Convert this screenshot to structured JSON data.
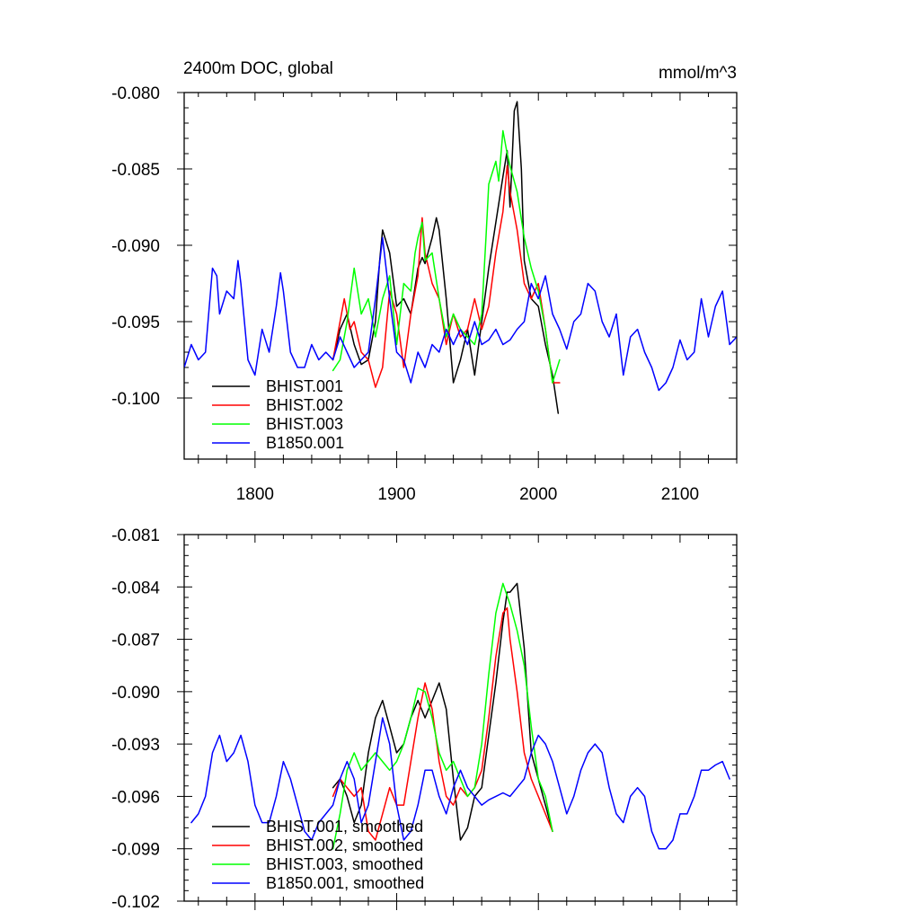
{
  "chart_data": [
    {
      "type": "line",
      "title": "2400m DOC, global",
      "units": "mmol/m^3",
      "xlim": [
        1750,
        2140
      ],
      "ylim": [
        -0.104,
        -0.08
      ],
      "x_ticks": [
        1800,
        1900,
        2000,
        2100
      ],
      "x_tick_labels": [
        "1800",
        "1900",
        "2000",
        "2100"
      ],
      "y_ticks": [
        -0.1,
        -0.095,
        -0.09,
        -0.085,
        -0.08
      ],
      "y_tick_labels": [
        "-0.100",
        "-0.095",
        "-0.090",
        "-0.085",
        "-0.080"
      ],
      "legend_position": "bottom-left",
      "series": [
        {
          "name": "BHIST.001",
          "color": "#000000",
          "x": [
            1855,
            1860,
            1865,
            1870,
            1875,
            1880,
            1885,
            1888,
            1890,
            1895,
            1900,
            1905,
            1910,
            1915,
            1918,
            1920,
            1925,
            1928,
            1930,
            1935,
            1940,
            1945,
            1950,
            1955,
            1960,
            1965,
            1970,
            1975,
            1978,
            1980,
            1983,
            1985,
            1988,
            1990,
            1995,
            2000,
            2005,
            2010,
            2014
          ],
          "y": [
            -0.0975,
            -0.0955,
            -0.0945,
            -0.0965,
            -0.0978,
            -0.0975,
            -0.095,
            -0.091,
            -0.089,
            -0.0905,
            -0.094,
            -0.0935,
            -0.0945,
            -0.0915,
            -0.0908,
            -0.0912,
            -0.0895,
            -0.0882,
            -0.089,
            -0.0935,
            -0.099,
            -0.0975,
            -0.0955,
            -0.0985,
            -0.095,
            -0.0915,
            -0.0885,
            -0.0855,
            -0.0838,
            -0.0875,
            -0.0812,
            -0.0806,
            -0.085,
            -0.091,
            -0.0935,
            -0.094,
            -0.0965,
            -0.0985,
            -0.101
          ]
        },
        {
          "name": "BHIST.002",
          "color": "#ff0000",
          "x": [
            1855,
            1860,
            1863,
            1867,
            1870,
            1875,
            1880,
            1885,
            1890,
            1895,
            1900,
            1905,
            1910,
            1915,
            1918,
            1920,
            1925,
            1930,
            1935,
            1940,
            1945,
            1950,
            1955,
            1960,
            1965,
            1970,
            1975,
            1978,
            1980,
            1985,
            1990,
            1995,
            2000,
            2005,
            2010,
            2015
          ],
          "y": [
            -0.0975,
            -0.095,
            -0.0935,
            -0.0955,
            -0.095,
            -0.097,
            -0.0975,
            -0.0993,
            -0.098,
            -0.093,
            -0.0945,
            -0.098,
            -0.0945,
            -0.092,
            -0.0882,
            -0.0905,
            -0.0925,
            -0.0935,
            -0.0965,
            -0.0945,
            -0.096,
            -0.0955,
            -0.0935,
            -0.0955,
            -0.094,
            -0.0905,
            -0.0878,
            -0.0848,
            -0.0865,
            -0.089,
            -0.0925,
            -0.0935,
            -0.0925,
            -0.0955,
            -0.099,
            -0.099
          ]
        },
        {
          "name": "BHIST.003",
          "color": "#00ff00",
          "x": [
            1855,
            1860,
            1865,
            1870,
            1875,
            1880,
            1885,
            1890,
            1895,
            1900,
            1905,
            1910,
            1913,
            1915,
            1918,
            1920,
            1925,
            1930,
            1935,
            1940,
            1945,
            1950,
            1955,
            1960,
            1963,
            1965,
            1970,
            1972,
            1975,
            1978,
            1980,
            1985,
            1990,
            1995,
            2000,
            2005,
            2010,
            2015
          ],
          "y": [
            -0.0982,
            -0.0975,
            -0.095,
            -0.0915,
            -0.0945,
            -0.0935,
            -0.096,
            -0.0935,
            -0.092,
            -0.0965,
            -0.0925,
            -0.093,
            -0.0905,
            -0.0895,
            -0.0885,
            -0.091,
            -0.0905,
            -0.0935,
            -0.096,
            -0.0945,
            -0.0955,
            -0.096,
            -0.0965,
            -0.0945,
            -0.0895,
            -0.086,
            -0.0845,
            -0.0858,
            -0.0825,
            -0.084,
            -0.0848,
            -0.0865,
            -0.0895,
            -0.0915,
            -0.093,
            -0.0955,
            -0.099,
            -0.0975
          ]
        },
        {
          "name": "B1850.001",
          "color": "#0000ff",
          "x": [
            1750,
            1755,
            1760,
            1765,
            1770,
            1773,
            1775,
            1780,
            1785,
            1788,
            1790,
            1795,
            1800,
            1805,
            1810,
            1815,
            1818,
            1820,
            1825,
            1830,
            1835,
            1840,
            1845,
            1850,
            1855,
            1860,
            1865,
            1870,
            1875,
            1880,
            1885,
            1890,
            1895,
            1900,
            1905,
            1910,
            1915,
            1920,
            1925,
            1930,
            1935,
            1940,
            1945,
            1950,
            1955,
            1960,
            1965,
            1970,
            1975,
            1980,
            1985,
            1990,
            1995,
            2000,
            2005,
            2010,
            2015,
            2020,
            2025,
            2030,
            2035,
            2040,
            2045,
            2050,
            2055,
            2060,
            2065,
            2070,
            2075,
            2080,
            2085,
            2090,
            2095,
            2100,
            2105,
            2110,
            2115,
            2120,
            2125,
            2130,
            2135,
            2140
          ],
          "y": [
            -0.098,
            -0.0965,
            -0.0975,
            -0.097,
            -0.0915,
            -0.092,
            -0.0945,
            -0.093,
            -0.0935,
            -0.091,
            -0.0925,
            -0.0975,
            -0.0985,
            -0.0955,
            -0.097,
            -0.094,
            -0.0918,
            -0.093,
            -0.097,
            -0.098,
            -0.098,
            -0.0965,
            -0.0975,
            -0.097,
            -0.0975,
            -0.096,
            -0.097,
            -0.098,
            -0.0975,
            -0.097,
            -0.0935,
            -0.0895,
            -0.0935,
            -0.097,
            -0.0975,
            -0.099,
            -0.097,
            -0.098,
            -0.0965,
            -0.097,
            -0.0955,
            -0.0965,
            -0.0955,
            -0.0965,
            -0.095,
            -0.0965,
            -0.0962,
            -0.0955,
            -0.0965,
            -0.0962,
            -0.0955,
            -0.095,
            -0.0925,
            -0.0935,
            -0.092,
            -0.0945,
            -0.0955,
            -0.0968,
            -0.095,
            -0.0945,
            -0.0925,
            -0.093,
            -0.095,
            -0.096,
            -0.0945,
            -0.0985,
            -0.096,
            -0.0955,
            -0.097,
            -0.098,
            -0.0995,
            -0.099,
            -0.098,
            -0.0962,
            -0.0975,
            -0.097,
            -0.0935,
            -0.096,
            -0.094,
            -0.093,
            -0.0965,
            -0.096
          ]
        }
      ]
    },
    {
      "type": "line",
      "title": "",
      "xlim": [
        1750,
        2140
      ],
      "ylim": [
        -0.102,
        -0.081
      ],
      "x_ticks": [
        1800,
        1900,
        2000,
        2100
      ],
      "x_tick_labels": [],
      "y_ticks": [
        -0.102,
        -0.099,
        -0.096,
        -0.093,
        -0.09,
        -0.087,
        -0.084,
        -0.081
      ],
      "y_tick_labels": [
        "-0.102",
        "-0.099",
        "-0.096",
        "-0.093",
        "-0.090",
        "-0.087",
        "-0.084",
        "-0.081"
      ],
      "legend_position": "bottom-left",
      "series": [
        {
          "name": "BHIST.001, smoothed",
          "color": "#000000",
          "x": [
            1855,
            1860,
            1865,
            1870,
            1875,
            1880,
            1885,
            1890,
            1895,
            1900,
            1905,
            1910,
            1915,
            1920,
            1925,
            1930,
            1935,
            1940,
            1945,
            1950,
            1955,
            1960,
            1965,
            1970,
            1975,
            1978,
            1980,
            1985,
            1990,
            1995,
            2000,
            2005,
            2010
          ],
          "y": [
            -0.0955,
            -0.095,
            -0.096,
            -0.0975,
            -0.0965,
            -0.0935,
            -0.0915,
            -0.0905,
            -0.092,
            -0.0935,
            -0.093,
            -0.0915,
            -0.0905,
            -0.0915,
            -0.0905,
            -0.0895,
            -0.091,
            -0.095,
            -0.0985,
            -0.0978,
            -0.096,
            -0.0955,
            -0.0925,
            -0.0895,
            -0.086,
            -0.0843,
            -0.0843,
            -0.0838,
            -0.0875,
            -0.0935,
            -0.095,
            -0.0965,
            -0.098
          ]
        },
        {
          "name": "BHIST.002, smoothed",
          "color": "#ff0000",
          "x": [
            1855,
            1860,
            1865,
            1870,
            1875,
            1880,
            1885,
            1890,
            1895,
            1900,
            1905,
            1910,
            1915,
            1920,
            1925,
            1930,
            1935,
            1940,
            1945,
            1950,
            1955,
            1960,
            1965,
            1970,
            1975,
            1978,
            1980,
            1985,
            1990,
            1995,
            2000,
            2005,
            2010
          ],
          "y": [
            -0.096,
            -0.095,
            -0.0955,
            -0.096,
            -0.0955,
            -0.098,
            -0.0985,
            -0.097,
            -0.0955,
            -0.0965,
            -0.0965,
            -0.094,
            -0.0915,
            -0.0895,
            -0.091,
            -0.094,
            -0.096,
            -0.0965,
            -0.0955,
            -0.096,
            -0.0955,
            -0.0945,
            -0.0915,
            -0.088,
            -0.0855,
            -0.0852,
            -0.087,
            -0.09,
            -0.0935,
            -0.095,
            -0.096,
            -0.097,
            -0.098
          ]
        },
        {
          "name": "BHIST.003, smoothed",
          "color": "#00ff00",
          "x": [
            1855,
            1860,
            1865,
            1870,
            1875,
            1880,
            1885,
            1890,
            1895,
            1900,
            1905,
            1910,
            1915,
            1920,
            1925,
            1930,
            1935,
            1940,
            1945,
            1950,
            1955,
            1960,
            1965,
            1970,
            1975,
            1980,
            1985,
            1990,
            1995,
            2000,
            2005,
            2010
          ],
          "y": [
            -0.099,
            -0.097,
            -0.0945,
            -0.0935,
            -0.0945,
            -0.094,
            -0.0935,
            -0.094,
            -0.0945,
            -0.094,
            -0.093,
            -0.0915,
            -0.0898,
            -0.09,
            -0.0915,
            -0.0935,
            -0.0945,
            -0.094,
            -0.095,
            -0.096,
            -0.0955,
            -0.093,
            -0.089,
            -0.0855,
            -0.0838,
            -0.085,
            -0.0865,
            -0.0885,
            -0.092,
            -0.095,
            -0.096,
            -0.098
          ]
        },
        {
          "name": "B1850.001, smoothed",
          "color": "#0000ff",
          "x": [
            1755,
            1760,
            1765,
            1770,
            1775,
            1780,
            1785,
            1790,
            1795,
            1800,
            1805,
            1810,
            1815,
            1820,
            1825,
            1830,
            1835,
            1840,
            1845,
            1850,
            1855,
            1860,
            1865,
            1870,
            1875,
            1880,
            1885,
            1890,
            1895,
            1900,
            1905,
            1910,
            1915,
            1920,
            1925,
            1930,
            1935,
            1940,
            1945,
            1950,
            1955,
            1960,
            1965,
            1970,
            1975,
            1980,
            1985,
            1990,
            1995,
            2000,
            2005,
            2010,
            2015,
            2020,
            2025,
            2030,
            2035,
            2040,
            2045,
            2050,
            2055,
            2060,
            2065,
            2070,
            2075,
            2080,
            2085,
            2090,
            2095,
            2100,
            2105,
            2110,
            2115,
            2120,
            2125,
            2130,
            2135
          ],
          "y": [
            -0.0975,
            -0.097,
            -0.096,
            -0.0935,
            -0.0925,
            -0.094,
            -0.0935,
            -0.0925,
            -0.094,
            -0.0965,
            -0.0975,
            -0.0975,
            -0.096,
            -0.094,
            -0.095,
            -0.0965,
            -0.098,
            -0.0985,
            -0.0975,
            -0.097,
            -0.0965,
            -0.095,
            -0.094,
            -0.095,
            -0.0975,
            -0.0965,
            -0.094,
            -0.0915,
            -0.093,
            -0.0965,
            -0.0985,
            -0.098,
            -0.0965,
            -0.0945,
            -0.0945,
            -0.096,
            -0.097,
            -0.0955,
            -0.0945,
            -0.0955,
            -0.096,
            -0.0965,
            -0.0962,
            -0.096,
            -0.0958,
            -0.096,
            -0.0955,
            -0.095,
            -0.0935,
            -0.0925,
            -0.093,
            -0.094,
            -0.0955,
            -0.097,
            -0.096,
            -0.0945,
            -0.0935,
            -0.093,
            -0.0935,
            -0.0955,
            -0.097,
            -0.0975,
            -0.096,
            -0.0955,
            -0.096,
            -0.098,
            -0.099,
            -0.099,
            -0.0985,
            -0.097,
            -0.097,
            -0.096,
            -0.0945,
            -0.0945,
            -0.0942,
            -0.094,
            -0.095
          ]
        }
      ]
    }
  ]
}
